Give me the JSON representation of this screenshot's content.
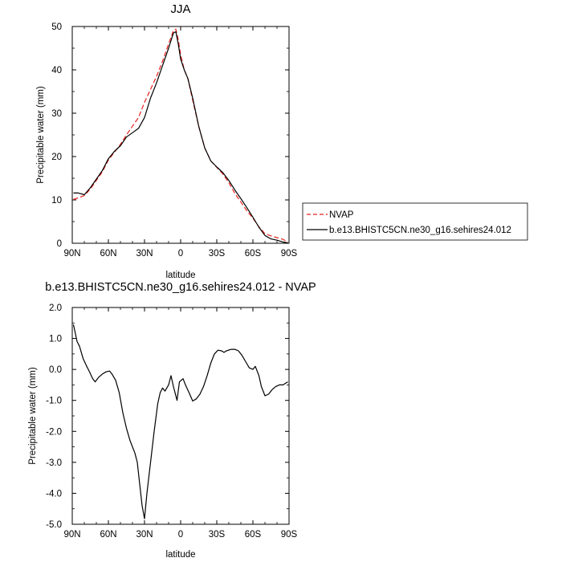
{
  "chart_data": [
    {
      "type": "line",
      "title": "JJA",
      "xlabel": "latitude",
      "ylabel": "Precipitable water (mm)",
      "xlim": [
        90,
        -90
      ],
      "ylim": [
        0,
        50
      ],
      "x_ticks": [
        90,
        60,
        30,
        0,
        -30,
        -60,
        -90
      ],
      "x_tick_labels": [
        "90N",
        "60N",
        "30N",
        "0",
        "30S",
        "60S",
        "90S"
      ],
      "y_ticks": [
        0,
        10,
        20,
        30,
        40,
        50
      ],
      "y_tick_labels": [
        "0",
        "10",
        "20",
        "30",
        "40",
        "50"
      ],
      "grid": false,
      "legend_position": "right",
      "series": [
        {
          "name": "NVAP",
          "color": "#e8211d",
          "dash": "dashed",
          "points": [
            [
              89,
              10.1
            ],
            [
              85,
              10.5
            ],
            [
              80,
              11.0
            ],
            [
              75,
              12.5
            ],
            [
              70,
              14.5
            ],
            [
              65,
              16.5
            ],
            [
              60,
              19.2
            ],
            [
              55,
              21.0
            ],
            [
              50,
              22.8
            ],
            [
              45,
              25.0
            ],
            [
              40,
              27.0
            ],
            [
              35,
              29.0
            ],
            [
              30,
              32.5
            ],
            [
              25,
              35.5
            ],
            [
              20,
              38.5
            ],
            [
              15,
              42.0
            ],
            [
              10,
              46.0
            ],
            [
              6,
              49.0
            ],
            [
              4,
              49.4
            ],
            [
              2,
              47.0
            ],
            [
              0,
              43.5
            ],
            [
              -3,
              40.0
            ],
            [
              -6,
              38.0
            ],
            [
              -10,
              33.0
            ],
            [
              -15,
              27.0
            ],
            [
              -20,
              22.0
            ],
            [
              -25,
              19.0
            ],
            [
              -30,
              17.5
            ],
            [
              -35,
              16.0
            ],
            [
              -40,
              14.0
            ],
            [
              -45,
              11.5
            ],
            [
              -50,
              9.5
            ],
            [
              -55,
              7.5
            ],
            [
              -60,
              5.8
            ],
            [
              -65,
              3.8
            ],
            [
              -70,
              2.2
            ],
            [
              -75,
              1.7
            ],
            [
              -80,
              1.3
            ],
            [
              -85,
              0.9
            ],
            [
              -89,
              0.3
            ]
          ]
        },
        {
          "name": "b.e13.BHISTC5CN.ne30_g16.sehires24.012",
          "color": "#000000",
          "dash": "solid",
          "points": [
            [
              89,
              11.6
            ],
            [
              85,
              11.6
            ],
            [
              80,
              11.2
            ],
            [
              75,
              12.8
            ],
            [
              70,
              14.8
            ],
            [
              65,
              16.8
            ],
            [
              60,
              19.5
            ],
            [
              55,
              21.2
            ],
            [
              50,
              22.5
            ],
            [
              45,
              24.5
            ],
            [
              40,
              25.5
            ],
            [
              35,
              26.5
            ],
            [
              32,
              28.0
            ],
            [
              30,
              29.0
            ],
            [
              25,
              33.5
            ],
            [
              20,
              37.0
            ],
            [
              15,
              41.0
            ],
            [
              10,
              45.0
            ],
            [
              6,
              48.5
            ],
            [
              4,
              48.8
            ],
            [
              2,
              46.0
            ],
            [
              0,
              42.5
            ],
            [
              -3,
              40.0
            ],
            [
              -6,
              38.0
            ],
            [
              -10,
              33.5
            ],
            [
              -15,
              27.0
            ],
            [
              -20,
              22.0
            ],
            [
              -25,
              19.0
            ],
            [
              -30,
              17.6
            ],
            [
              -35,
              16.3
            ],
            [
              -40,
              14.5
            ],
            [
              -45,
              12.3
            ],
            [
              -50,
              10.3
            ],
            [
              -55,
              8.2
            ],
            [
              -60,
              6.0
            ],
            [
              -65,
              3.7
            ],
            [
              -70,
              1.8
            ],
            [
              -75,
              1.0
            ],
            [
              -80,
              0.7
            ],
            [
              -85,
              0.3
            ],
            [
              -89,
              0.1
            ]
          ]
        }
      ]
    },
    {
      "type": "line",
      "title": "b.e13.BHISTC5CN.ne30_g16.sehires24.012 - NVAP",
      "xlabel": "latitude",
      "ylabel": "Precipitable water (mm)",
      "xlim": [
        90,
        -90
      ],
      "ylim": [
        -5,
        2
      ],
      "x_ticks": [
        90,
        60,
        30,
        0,
        -30,
        -60,
        -90
      ],
      "x_tick_labels": [
        "90N",
        "60N",
        "30N",
        "0",
        "30S",
        "60S",
        "90S"
      ],
      "y_ticks": [
        2,
        1,
        0,
        -1,
        -2,
        -3,
        -4,
        -5
      ],
      "y_tick_labels": [
        "2.0",
        "1.0",
        "0.0",
        "-1.0",
        "-2.0",
        "-3.0",
        "-4.0",
        "-5.0"
      ],
      "grid": false,
      "series": [
        {
          "color": "#000000",
          "dash": "solid",
          "points": [
            [
              89,
              1.45
            ],
            [
              86,
              0.9
            ],
            [
              84,
              0.75
            ],
            [
              81,
              0.35
            ],
            [
              78,
              0.1
            ],
            [
              76,
              -0.05
            ],
            [
              73,
              -0.3
            ],
            [
              71,
              -0.4
            ],
            [
              68,
              -0.25
            ],
            [
              65,
              -0.15
            ],
            [
              62,
              -0.08
            ],
            [
              59,
              -0.05
            ],
            [
              57,
              -0.15
            ],
            [
              54,
              -0.35
            ],
            [
              51,
              -0.75
            ],
            [
              48,
              -1.4
            ],
            [
              45,
              -1.9
            ],
            [
              42,
              -2.3
            ],
            [
              38,
              -2.7
            ],
            [
              36,
              -3.0
            ],
            [
              34,
              -3.7
            ],
            [
              32,
              -4.4
            ],
            [
              30,
              -4.82
            ],
            [
              28,
              -4.0
            ],
            [
              25,
              -3.0
            ],
            [
              22,
              -2.0
            ],
            [
              19,
              -1.1
            ],
            [
              17,
              -0.75
            ],
            [
              15,
              -0.6
            ],
            [
              13,
              -0.7
            ],
            [
              10,
              -0.5
            ],
            [
              8,
              -0.2
            ],
            [
              6,
              -0.55
            ],
            [
              3,
              -1.0
            ],
            [
              1,
              -0.4
            ],
            [
              -2,
              -0.3
            ],
            [
              -4,
              -0.5
            ],
            [
              -7,
              -0.75
            ],
            [
              -10,
              -1.02
            ],
            [
              -13,
              -0.95
            ],
            [
              -16,
              -0.8
            ],
            [
              -19,
              -0.55
            ],
            [
              -22,
              -0.2
            ],
            [
              -25,
              0.2
            ],
            [
              -28,
              0.5
            ],
            [
              -31,
              0.62
            ],
            [
              -34,
              0.6
            ],
            [
              -36,
              0.55
            ],
            [
              -38,
              0.6
            ],
            [
              -42,
              0.65
            ],
            [
              -45,
              0.65
            ],
            [
              -48,
              0.6
            ],
            [
              -51,
              0.45
            ],
            [
              -54,
              0.25
            ],
            [
              -57,
              0.05
            ],
            [
              -60,
              0.0
            ],
            [
              -62,
              0.1
            ],
            [
              -65,
              -0.2
            ],
            [
              -67,
              -0.55
            ],
            [
              -70,
              -0.85
            ],
            [
              -73,
              -0.8
            ],
            [
              -76,
              -0.65
            ],
            [
              -79,
              -0.55
            ],
            [
              -82,
              -0.5
            ],
            [
              -85,
              -0.5
            ],
            [
              -87,
              -0.45
            ],
            [
              -89,
              -0.4
            ]
          ]
        }
      ]
    }
  ]
}
